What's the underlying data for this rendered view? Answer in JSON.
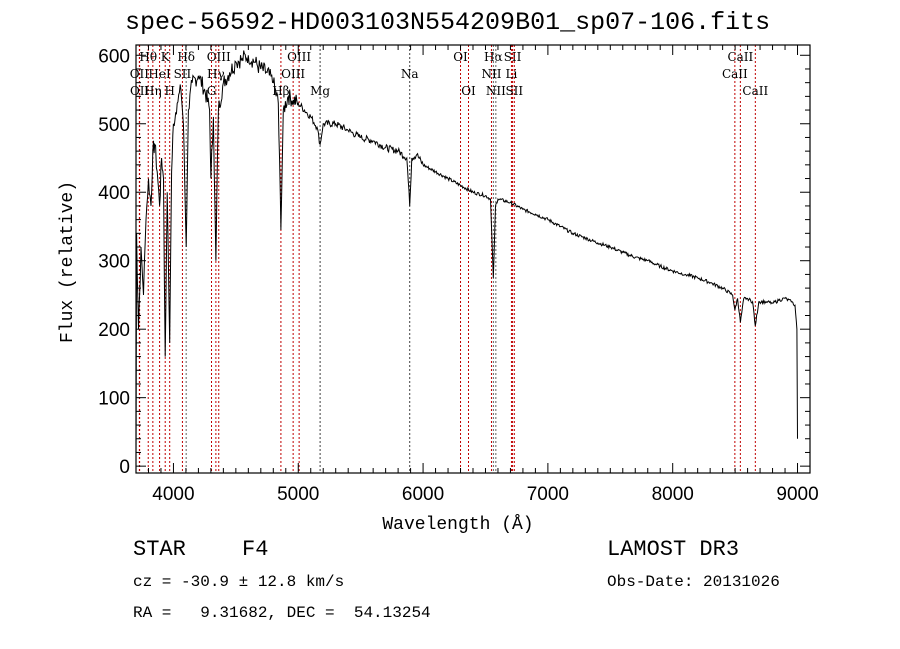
{
  "chart_data": {
    "type": "line",
    "title": "spec-56592-HD003103N554209B01_sp07-106.fits",
    "xlabel": "Wavelength (Å)",
    "ylabel": "Flux (relative)",
    "xlim": [
      3700,
      9100
    ],
    "ylim": [
      -10,
      615
    ],
    "grid": false,
    "xticks": [
      4000,
      5000,
      6000,
      7000,
      8000,
      9000
    ],
    "yticks": [
      0,
      100,
      200,
      300,
      400,
      500,
      600
    ],
    "series": [
      {
        "name": "spectrum",
        "color": "#000000",
        "points": [
          [
            3700,
            10
          ],
          [
            3705,
            340
          ],
          [
            3720,
            200
          ],
          [
            3740,
            320
          ],
          [
            3760,
            250
          ],
          [
            3780,
            360
          ],
          [
            3800,
            420
          ],
          [
            3820,
            380
          ],
          [
            3835,
            460
          ],
          [
            3850,
            470
          ],
          [
            3870,
            430
          ],
          [
            3889,
            380
          ],
          [
            3905,
            450
          ],
          [
            3920,
            420
          ],
          [
            3934,
            160
          ],
          [
            3950,
            400
          ],
          [
            3970,
            180
          ],
          [
            3985,
            430
          ],
          [
            4000,
            500
          ],
          [
            4030,
            530
          ],
          [
            4060,
            550
          ],
          [
            4080,
            500
          ],
          [
            4102,
            320
          ],
          [
            4120,
            520
          ],
          [
            4150,
            560
          ],
          [
            4200,
            570
          ],
          [
            4250,
            550
          ],
          [
            4290,
            520
          ],
          [
            4300,
            420
          ],
          [
            4320,
            510
          ],
          [
            4340,
            300
          ],
          [
            4360,
            520
          ],
          [
            4400,
            560
          ],
          [
            4450,
            575
          ],
          [
            4500,
            590
          ],
          [
            4550,
            595
          ],
          [
            4600,
            600
          ],
          [
            4650,
            590
          ],
          [
            4700,
            580
          ],
          [
            4750,
            575
          ],
          [
            4800,
            560
          ],
          [
            4840,
            530
          ],
          [
            4861,
            345
          ],
          [
            4880,
            520
          ],
          [
            4920,
            540
          ],
          [
            4960,
            535
          ],
          [
            5000,
            530
          ],
          [
            5050,
            520
          ],
          [
            5100,
            510
          ],
          [
            5150,
            495
          ],
          [
            5175,
            470
          ],
          [
            5200,
            500
          ],
          [
            5300,
            500
          ],
          [
            5400,
            490
          ],
          [
            5500,
            480
          ],
          [
            5600,
            475
          ],
          [
            5700,
            465
          ],
          [
            5800,
            460
          ],
          [
            5870,
            450
          ],
          [
            5893,
            380
          ],
          [
            5910,
            450
          ],
          [
            5950,
            455
          ],
          [
            6000,
            440
          ],
          [
            6100,
            430
          ],
          [
            6200,
            420
          ],
          [
            6300,
            410
          ],
          [
            6400,
            400
          ],
          [
            6500,
            395
          ],
          [
            6540,
            390
          ],
          [
            6563,
            275
          ],
          [
            6580,
            380
          ],
          [
            6600,
            390
          ],
          [
            6700,
            385
          ],
          [
            6800,
            375
          ],
          [
            6900,
            368
          ],
          [
            7000,
            360
          ],
          [
            7100,
            350
          ],
          [
            7200,
            340
          ],
          [
            7300,
            333
          ],
          [
            7400,
            326
          ],
          [
            7500,
            320
          ],
          [
            7600,
            312
          ],
          [
            7700,
            305
          ],
          [
            7800,
            300
          ],
          [
            7900,
            292
          ],
          [
            8000,
            285
          ],
          [
            8100,
            280
          ],
          [
            8200,
            275
          ],
          [
            8300,
            268
          ],
          [
            8400,
            260
          ],
          [
            8480,
            250
          ],
          [
            8498,
            228
          ],
          [
            8520,
            245
          ],
          [
            8542,
            210
          ],
          [
            8570,
            245
          ],
          [
            8600,
            245
          ],
          [
            8640,
            240
          ],
          [
            8662,
            205
          ],
          [
            8690,
            240
          ],
          [
            8750,
            240
          ],
          [
            8800,
            238
          ],
          [
            8850,
            242
          ],
          [
            8900,
            245
          ],
          [
            8950,
            240
          ],
          [
            8980,
            235
          ],
          [
            8995,
            200
          ],
          [
            9000,
            40
          ]
        ]
      }
    ],
    "line_markers": [
      {
        "wavelength": 3798,
        "label": "Hθ",
        "row": 1,
        "color": "#c00000"
      },
      {
        "wavelength": 3934,
        "label": "K",
        "row": 1,
        "color": "#c00000"
      },
      {
        "wavelength": 4102,
        "label": "Hδ",
        "row": 1,
        "color": "#606060"
      },
      {
        "wavelength": 4363,
        "label": "OIII",
        "row": 1,
        "color": "#c00000"
      },
      {
        "wavelength": 5007,
        "label": "OIII",
        "row": 1,
        "color": "#c00000"
      },
      {
        "wavelength": 6300,
        "label": "OI",
        "row": 1,
        "color": "#c00000"
      },
      {
        "wavelength": 6563,
        "label": "Hα",
        "row": 1,
        "color": "#606060"
      },
      {
        "wavelength": 6717,
        "label": "SII",
        "row": 1,
        "color": "#c00000"
      },
      {
        "wavelength": 8542,
        "label": "CaII",
        "row": 1,
        "color": "#c00000"
      },
      {
        "wavelength": 3727,
        "label": "OII",
        "row": 2,
        "color": "#c00000"
      },
      {
        "wavelength": 3889,
        "label": "HeI",
        "row": 2,
        "color": "#c00000"
      },
      {
        "wavelength": 4072,
        "label": "SII",
        "row": 2,
        "color": "#c00000"
      },
      {
        "wavelength": 4340,
        "label": "Hγ",
        "row": 2,
        "color": "#c00000"
      },
      {
        "wavelength": 4959,
        "label": "OIII",
        "row": 2,
        "color": "#c00000"
      },
      {
        "wavelength": 5893,
        "label": "Na",
        "row": 2,
        "color": "#404040"
      },
      {
        "wavelength": 6548,
        "label": "NII",
        "row": 2,
        "color": "#c00000"
      },
      {
        "wavelength": 6708,
        "label": "Li",
        "row": 2,
        "color": "#c00000"
      },
      {
        "wavelength": 8498,
        "label": "CaII",
        "row": 2,
        "color": "#c00000"
      },
      {
        "wavelength": 3729,
        "label": "OII",
        "row": 3,
        "color": "#c00000"
      },
      {
        "wavelength": 3835,
        "label": "Hη",
        "row": 3,
        "color": "#c00000"
      },
      {
        "wavelength": 3970,
        "label": "H",
        "row": 3,
        "color": "#c00000"
      },
      {
        "wavelength": 4305,
        "label": "G",
        "row": 3,
        "color": "#c00000"
      },
      {
        "wavelength": 4861,
        "label": "Hβ",
        "row": 3,
        "color": "#c00000"
      },
      {
        "wavelength": 5175,
        "label": "Mg",
        "row": 3,
        "color": "#404040"
      },
      {
        "wavelength": 6364,
        "label": "OI",
        "row": 3,
        "color": "#c00000"
      },
      {
        "wavelength": 6583,
        "label": "NII",
        "row": 3,
        "color": "#606060"
      },
      {
        "wavelength": 6731,
        "label": "SII",
        "row": 3,
        "color": "#c00000"
      },
      {
        "wavelength": 8662,
        "label": "CaII",
        "row": 3,
        "color": "#c00000"
      }
    ]
  },
  "info": {
    "class": "STAR",
    "subclass": "F4",
    "survey": "LAMOST DR3",
    "cz": "cz = -30.9 ± 12.8 km/s",
    "obs_date": "Obs-Date: 20131026",
    "radec": "RA =   9.31682, DEC =  54.13254"
  }
}
